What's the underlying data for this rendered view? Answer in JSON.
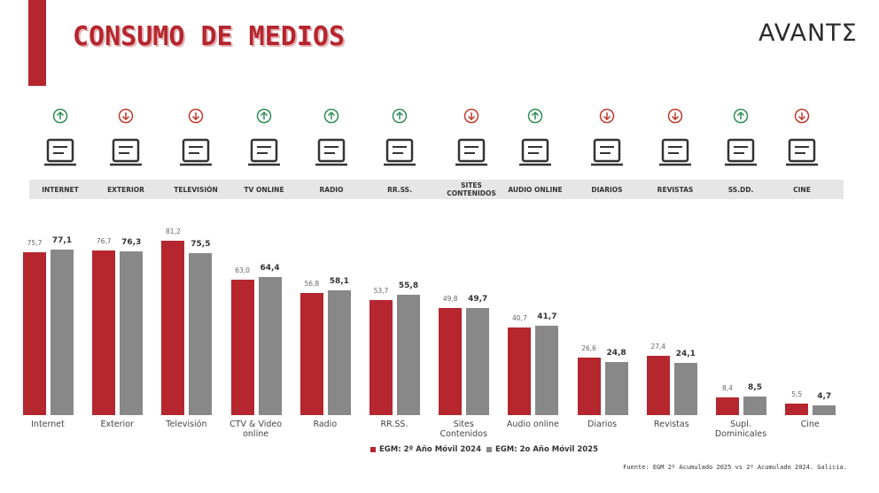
{
  "header": {
    "title": "CONSUMO DE MEDIOS",
    "logo": "AVANTΣ"
  },
  "media_row": {
    "items": [
      {
        "label": "INTERNET",
        "trend": "up"
      },
      {
        "label": "EXTERIOR",
        "trend": "down"
      },
      {
        "label": "TELEVISIÓN",
        "trend": "down"
      },
      {
        "label": "TV ONLINE",
        "trend": "up"
      },
      {
        "label": "RADIO",
        "trend": "up"
      },
      {
        "label": "RR.SS.",
        "trend": "up"
      },
      {
        "label": "SITES CONTENIDOS",
        "trend": "down"
      },
      {
        "label": "AUDIO ONLINE",
        "trend": "up"
      },
      {
        "label": "DIARIOS",
        "trend": "down"
      },
      {
        "label": "REVISTAS",
        "trend": "down"
      },
      {
        "label": "SS.DD.",
        "trend": "up"
      },
      {
        "label": "CINE",
        "trend": "down"
      }
    ]
  },
  "chart_data": {
    "type": "bar",
    "categories": [
      "Internet",
      "Exterior",
      "Televisión",
      "CTV & Video online",
      "Radio",
      "RR.SS.",
      "Sites Contenidos",
      "Audio online",
      "Diarios",
      "Revistas",
      "Supl. Dominicales",
      "Cine"
    ],
    "series": [
      {
        "name": "EGM: 2º Año Móvil 2024",
        "color": "#b5262e",
        "values": [
          75.7,
          76.7,
          81.2,
          63.0,
          56.8,
          53.7,
          49.8,
          40.7,
          26.6,
          27.4,
          8.4,
          5.5
        ],
        "value_labels": [
          "75,7",
          "76,7",
          "81,2",
          "63,0",
          "56,8",
          "53,7",
          "49,8",
          "40,7",
          "26,6",
          "27,4",
          "8,4",
          "5,5"
        ]
      },
      {
        "name": "EGM: 2o Año Móvil 2025",
        "color": "#888888",
        "values": [
          77.1,
          76.3,
          75.5,
          64.4,
          58.1,
          55.8,
          49.7,
          41.7,
          24.8,
          24.1,
          8.5,
          4.7
        ],
        "value_labels": [
          "77,1",
          "76,3",
          "75,5",
          "64,4",
          "58,1",
          "55,8",
          "49,7",
          "41,7",
          "24,8",
          "24,1",
          "8,5",
          "4,7"
        ]
      }
    ]
  },
  "source": "Fuente: EGM 2º Acumulado 2025 vs 2º Acumulado 2024. Galicia."
}
